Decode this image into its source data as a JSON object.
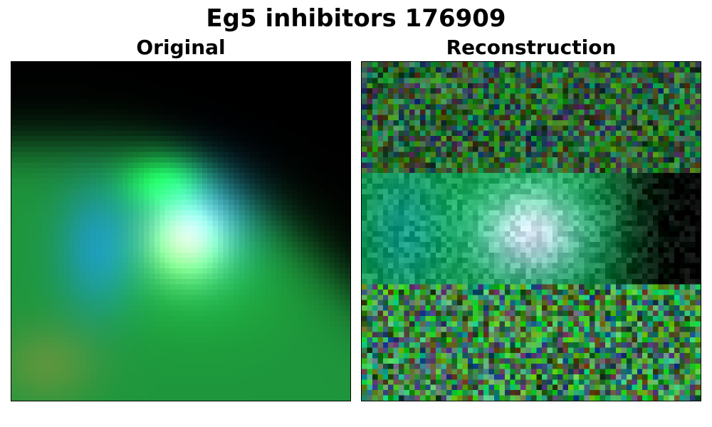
{
  "figure": {
    "title": "Eg5 inhibitors 176909"
  },
  "panels": [
    {
      "title": "Original"
    },
    {
      "title": "Reconstruction"
    }
  ]
}
